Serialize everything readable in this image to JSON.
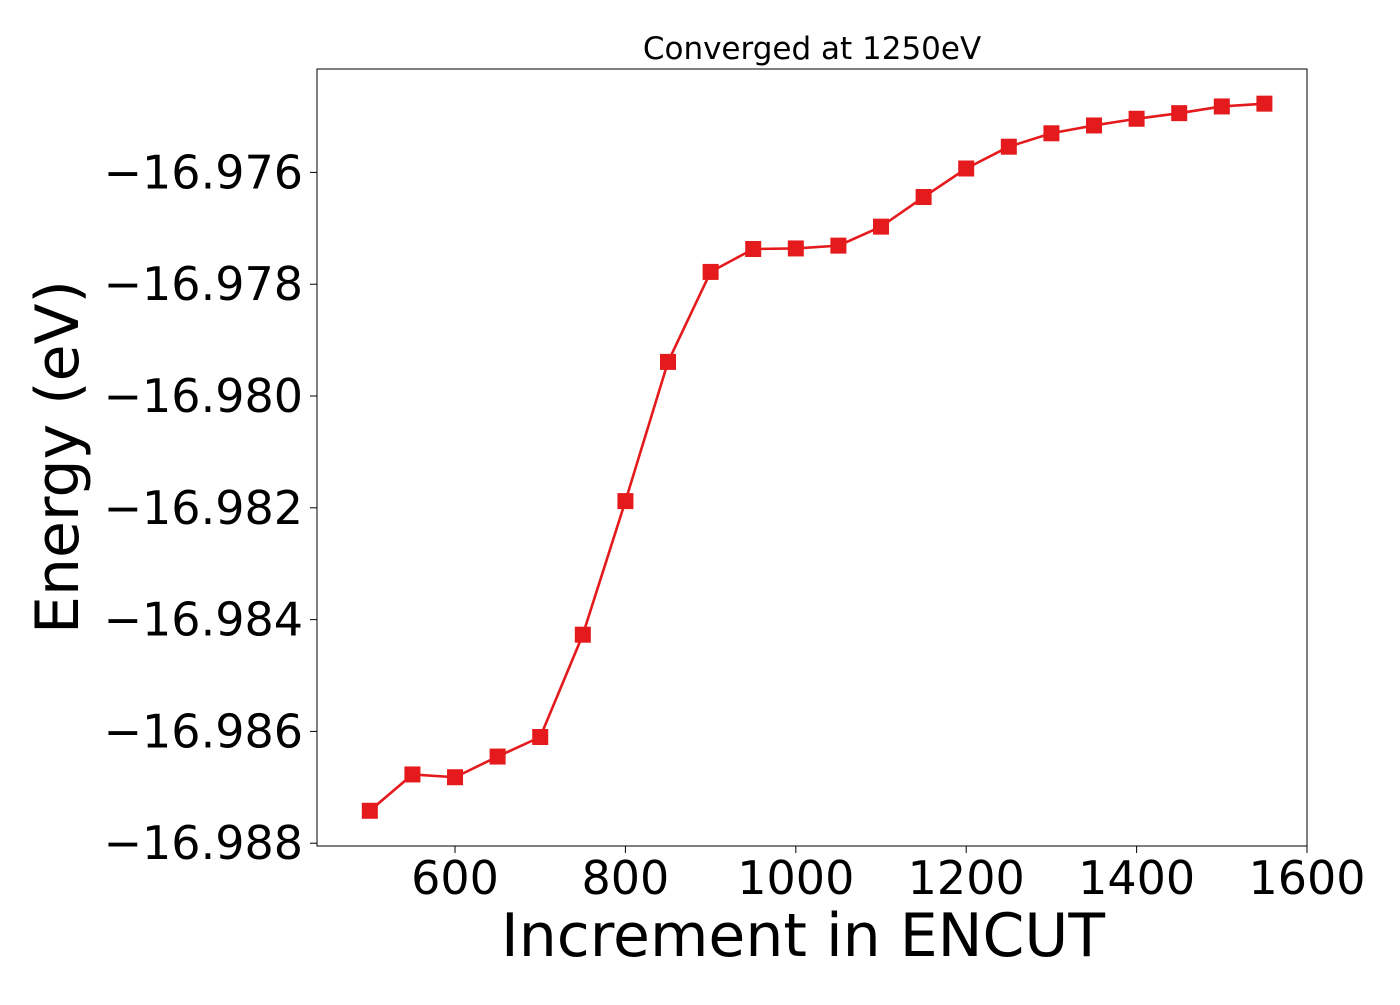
{
  "chart_data": {
    "type": "line",
    "title": "Converged at 1250eV",
    "xlabel": "Increment in ENCUT",
    "ylabel": "Energy (eV)",
    "xlim": [
      438,
      1600
    ],
    "ylim": [
      -16.98805,
      -16.97415
    ],
    "xticks": [
      600,
      800,
      1000,
      1200,
      1400,
      1600
    ],
    "yticks": [
      -16.976,
      -16.978,
      -16.98,
      -16.982,
      -16.984,
      -16.986,
      -16.988
    ],
    "ytick_labels": [
      "−16.976",
      "−16.978",
      "−16.980",
      "−16.982",
      "−16.984",
      "−16.986",
      "−16.988"
    ],
    "grid": false,
    "legend": "none",
    "series": [
      {
        "color": "#e41a1c",
        "marker": "square",
        "x": [
          500,
          550,
          600,
          650,
          700,
          750,
          800,
          850,
          900,
          950,
          1000,
          1050,
          1100,
          1150,
          1200,
          1250,
          1300,
          1350,
          1400,
          1450,
          1500,
          1550
        ],
        "y": [
          -16.98742,
          -16.98677,
          -16.98682,
          -16.98645,
          -16.9861,
          -16.98427,
          -16.98188,
          -16.97939,
          -16.97778,
          -16.97737,
          -16.97736,
          -16.97731,
          -16.97697,
          -16.97644,
          -16.97593,
          -16.97554,
          -16.9753,
          -16.97516,
          -16.97504,
          -16.97494,
          -16.97482,
          -16.97477
        ]
      }
    ]
  }
}
